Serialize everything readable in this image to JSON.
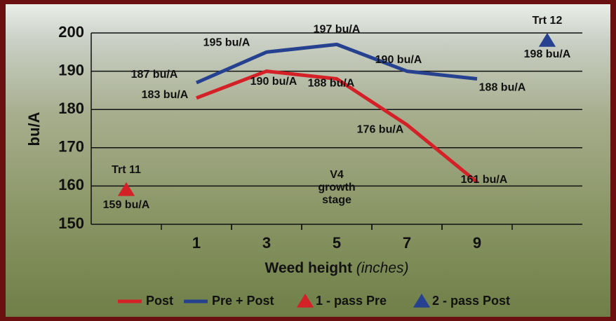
{
  "chart_data": {
    "type": "line",
    "ylabel": "bu/A",
    "xlabel": "Weed height",
    "xlabel_unit": "(inches)",
    "xlim": [
      -2,
      12
    ],
    "xticks": [
      1,
      3,
      5,
      7,
      9
    ],
    "ylim": [
      150,
      200
    ],
    "yticks": [
      150,
      160,
      170,
      180,
      190,
      200
    ],
    "grid": true,
    "annotation": [
      "V4",
      "growth",
      "stage"
    ],
    "annotation_x": 5,
    "series": [
      {
        "name": "Post",
        "color": "#d42027",
        "marker": "line",
        "x": [
          1,
          3,
          5,
          7,
          9
        ],
        "values": [
          183,
          190,
          188,
          176,
          161
        ],
        "value_labels": [
          "183 bu/A",
          "190 bu/A",
          "188 bu/A",
          "176 bu/A",
          "161 bu/A"
        ]
      },
      {
        "name": "Pre + Post",
        "color": "#25418f",
        "marker": "line",
        "x": [
          1,
          3,
          5,
          7,
          9
        ],
        "values": [
          187,
          195,
          197,
          190,
          188
        ],
        "value_labels": [
          "187 bu/A",
          "195 bu/A",
          "197 bu/A",
          "190 bu/A",
          "188 bu/A"
        ]
      },
      {
        "name": "1 - pass Pre",
        "color": "#d42027",
        "marker": "triangle",
        "x": [
          -1
        ],
        "values": [
          159
        ],
        "value_labels": [
          "159 bu/A"
        ],
        "point_labels": [
          "Trt 11"
        ]
      },
      {
        "name": "2 - pass Post",
        "color": "#25418f",
        "marker": "triangle",
        "x": [
          11
        ],
        "values": [
          198
        ],
        "value_labels": [
          "198 bu/A"
        ],
        "point_labels": [
          "Trt 12"
        ]
      }
    ]
  }
}
